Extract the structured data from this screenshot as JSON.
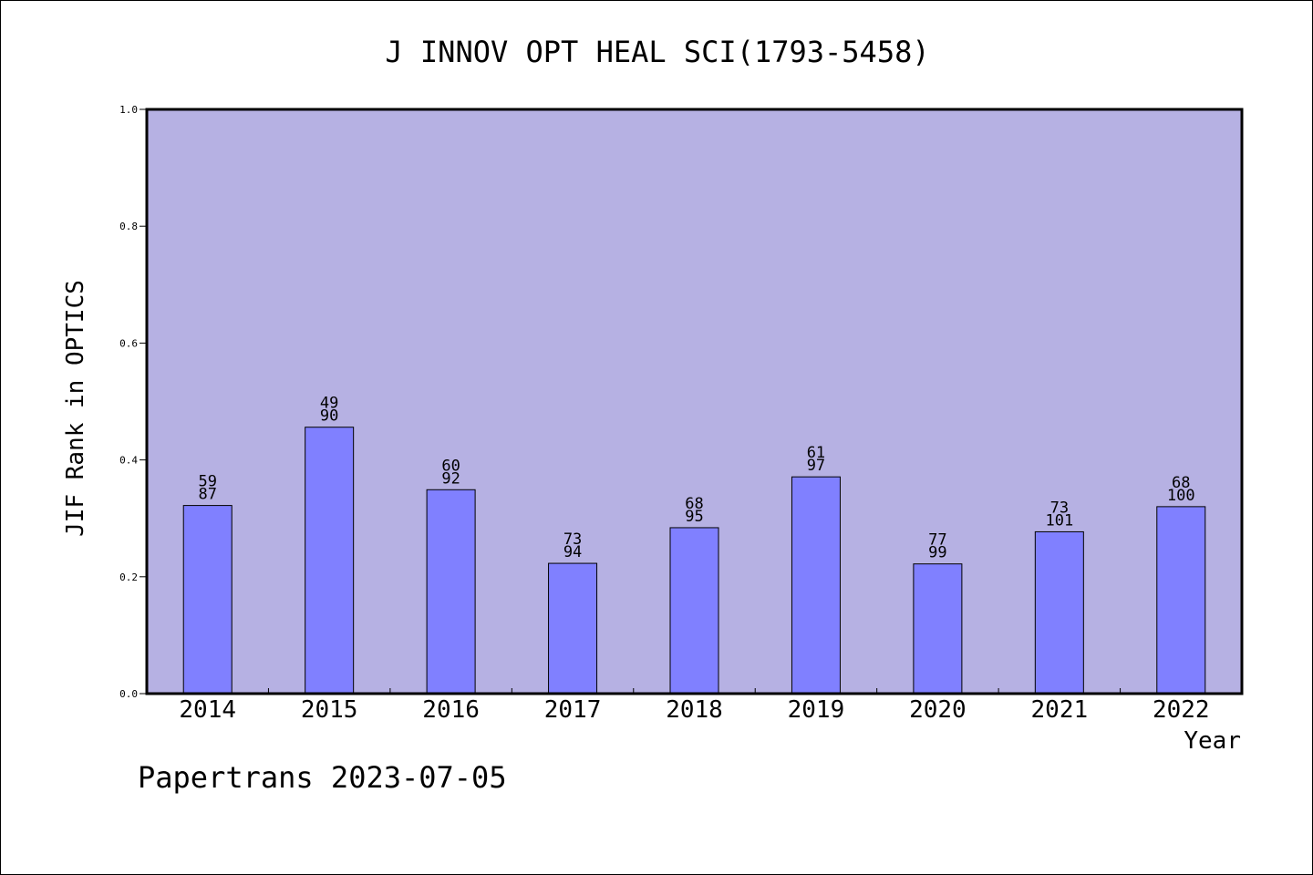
{
  "chart_data": {
    "type": "bar",
    "title": "J INNOV OPT HEAL SCI(1793-5458)",
    "xlabel": "Year",
    "ylabel": "JIF Rank in OPTICS",
    "ylim": [
      0,
      1.0
    ],
    "yticks": [
      0.0,
      0.2,
      0.4,
      0.6,
      0.8,
      1.0
    ],
    "ytick_labels": [
      "0.0",
      "0.2",
      "0.4",
      "0.6",
      "0.8",
      "1.0"
    ],
    "grid": false,
    "legend": "none",
    "categories": [
      "2014",
      "2015",
      "2016",
      "2017",
      "2018",
      "2019",
      "2020",
      "2021",
      "2022"
    ],
    "values": [
      0.322,
      0.456,
      0.349,
      0.223,
      0.284,
      0.371,
      0.222,
      0.277,
      0.32
    ],
    "rank_labels": [
      "59",
      "49",
      "60",
      "73",
      "68",
      "61",
      "77",
      "73",
      "68"
    ],
    "total_labels": [
      "87",
      "90",
      "92",
      "94",
      "95",
      "97",
      "99",
      "101",
      "100"
    ]
  },
  "footer": {
    "watermark": "Papertrans 2023-07-05"
  },
  "colors": {
    "plot_background": "#b6b1e3",
    "bar_fill": "#8080ff",
    "axis": "#000000"
  }
}
